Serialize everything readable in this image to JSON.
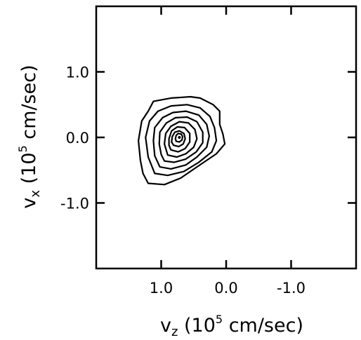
{
  "chart_data": {
    "type": "contour",
    "xlabel": {
      "var": "v",
      "sub": "z",
      "pre": " (10",
      "sup": "5",
      "post": " cm/sec)"
    },
    "ylabel": {
      "var": "v",
      "sub": "x",
      "pre": " (10",
      "sup": "5",
      "post": " cm/sec)"
    },
    "xlim": [
      2.0,
      -2.0
    ],
    "ylim": [
      -2.0,
      2.0
    ],
    "x_ticks": [
      {
        "value": 1.0,
        "label": "1.0"
      },
      {
        "value": 0.0,
        "label": "0.0"
      },
      {
        "value": -1.0,
        "label": "-1.0"
      }
    ],
    "y_ticks": [
      {
        "value": 1.0,
        "label": "1.0"
      },
      {
        "value": 0.0,
        "label": "0.0"
      },
      {
        "value": -1.0,
        "label": "-1.0"
      }
    ],
    "grid": false,
    "peak": [
      0.72,
      0.0
    ],
    "contours": [
      [
        [
          1.2,
          -0.7
        ],
        [
          0.95,
          -0.72
        ],
        [
          0.7,
          -0.62
        ],
        [
          0.45,
          -0.45
        ],
        [
          0.15,
          -0.25
        ],
        [
          0.02,
          -0.1
        ],
        [
          0.05,
          0.05
        ],
        [
          0.1,
          0.2
        ],
        [
          0.1,
          0.4
        ],
        [
          0.2,
          0.5
        ],
        [
          0.4,
          0.6
        ],
        [
          0.55,
          0.62
        ],
        [
          0.85,
          0.6
        ],
        [
          1.12,
          0.55
        ],
        [
          1.2,
          0.4
        ],
        [
          1.3,
          0.25
        ],
        [
          1.35,
          -0.05
        ],
        [
          1.32,
          -0.35
        ],
        [
          1.28,
          -0.55
        ]
      ],
      [
        [
          1.1,
          -0.55
        ],
        [
          0.9,
          -0.58
        ],
        [
          0.65,
          -0.52
        ],
        [
          0.42,
          -0.38
        ],
        [
          0.22,
          -0.22
        ],
        [
          0.15,
          -0.05
        ],
        [
          0.18,
          0.15
        ],
        [
          0.25,
          0.32
        ],
        [
          0.4,
          0.45
        ],
        [
          0.6,
          0.5
        ],
        [
          0.85,
          0.48
        ],
        [
          1.05,
          0.4
        ],
        [
          1.18,
          0.25
        ],
        [
          1.24,
          0.0
        ],
        [
          1.2,
          -0.3
        ]
      ],
      [
        [
          1.02,
          -0.45
        ],
        [
          0.85,
          -0.48
        ],
        [
          0.62,
          -0.42
        ],
        [
          0.45,
          -0.3
        ],
        [
          0.3,
          -0.15
        ],
        [
          0.26,
          0.02
        ],
        [
          0.3,
          0.2
        ],
        [
          0.42,
          0.34
        ],
        [
          0.62,
          0.4
        ],
        [
          0.82,
          0.38
        ],
        [
          0.98,
          0.3
        ],
        [
          1.1,
          0.15
        ],
        [
          1.12,
          -0.05
        ],
        [
          1.1,
          -0.28
        ]
      ],
      [
        [
          0.95,
          -0.36
        ],
        [
          0.8,
          -0.38
        ],
        [
          0.62,
          -0.33
        ],
        [
          0.46,
          -0.22
        ],
        [
          0.36,
          -0.08
        ],
        [
          0.36,
          0.08
        ],
        [
          0.45,
          0.24
        ],
        [
          0.6,
          0.31
        ],
        [
          0.78,
          0.3
        ],
        [
          0.92,
          0.22
        ],
        [
          1.02,
          0.08
        ],
        [
          1.03,
          -0.1
        ],
        [
          1.0,
          -0.26
        ]
      ],
      [
        [
          0.9,
          -0.27
        ],
        [
          0.76,
          -0.3
        ],
        [
          0.62,
          -0.25
        ],
        [
          0.5,
          -0.15
        ],
        [
          0.45,
          -0.02
        ],
        [
          0.48,
          0.12
        ],
        [
          0.58,
          0.22
        ],
        [
          0.72,
          0.24
        ],
        [
          0.85,
          0.17
        ],
        [
          0.93,
          0.06
        ],
        [
          0.95,
          -0.1
        ]
      ],
      [
        [
          0.85,
          -0.19
        ],
        [
          0.74,
          -0.22
        ],
        [
          0.63,
          -0.17
        ],
        [
          0.56,
          -0.07
        ],
        [
          0.56,
          0.06
        ],
        [
          0.64,
          0.15
        ],
        [
          0.75,
          0.16
        ],
        [
          0.84,
          0.1
        ],
        [
          0.88,
          -0.02
        ],
        [
          0.88,
          -0.12
        ]
      ],
      [
        [
          0.81,
          -0.12
        ],
        [
          0.73,
          -0.14
        ],
        [
          0.66,
          -0.1
        ],
        [
          0.63,
          -0.02
        ],
        [
          0.65,
          0.06
        ],
        [
          0.72,
          0.1
        ],
        [
          0.79,
          0.08
        ],
        [
          0.83,
          0.01
        ],
        [
          0.84,
          -0.07
        ]
      ],
      [
        [
          0.77,
          -0.06
        ],
        [
          0.72,
          -0.07
        ],
        [
          0.68,
          -0.04
        ],
        [
          0.67,
          0.01
        ],
        [
          0.69,
          0.05
        ],
        [
          0.74,
          0.06
        ],
        [
          0.77,
          0.03
        ],
        [
          0.78,
          -0.02
        ]
      ]
    ]
  }
}
